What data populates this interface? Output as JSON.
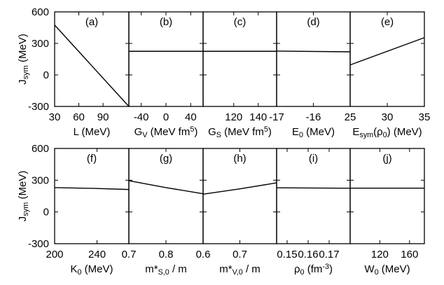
{
  "figure": {
    "y_axis": {
      "label_main": "J",
      "label_sub": "sym",
      "label_unit": " (MeV)",
      "ticks": [
        600,
        300,
        0,
        -300
      ],
      "tick_labels": [
        "600",
        "300",
        "0",
        "-300"
      ],
      "range": [
        -300,
        600
      ]
    }
  },
  "chart_data": [
    {
      "type": "line",
      "panel": "(a)",
      "xlabel": [
        {
          "t": "L (MeV)"
        }
      ],
      "xlim": [
        30,
        122
      ],
      "xticks": [
        30,
        60,
        90
      ],
      "xtick_labels": [
        "30",
        "60",
        "90"
      ],
      "ylim": [
        -300,
        600
      ],
      "series": [
        {
          "x": [
            30,
            122
          ],
          "y": [
            475,
            -300
          ]
        }
      ]
    },
    {
      "type": "line",
      "panel": "(b)",
      "xlabel": [
        {
          "t": "G"
        },
        {
          "t": "V",
          "sub": true
        },
        {
          "t": " (MeV fm"
        },
        {
          "t": "5",
          "sup": true
        },
        {
          "t": ")"
        }
      ],
      "xlim": [
        -60,
        60
      ],
      "xticks": [
        -40,
        0,
        40
      ],
      "xtick_labels": [
        "-40",
        "0",
        "40"
      ],
      "ylim": [
        -300,
        600
      ],
      "series": [
        {
          "x": [
            -60,
            60
          ],
          "y": [
            225,
            225
          ]
        }
      ]
    },
    {
      "type": "line",
      "panel": "(c)",
      "xlabel": [
        {
          "t": "G"
        },
        {
          "t": "S",
          "sub": true
        },
        {
          "t": " (MeV fm"
        },
        {
          "t": "5",
          "sup": true
        },
        {
          "t": ")"
        }
      ],
      "xlim": [
        95,
        155
      ],
      "xticks": [
        120,
        140
      ],
      "xtick_labels": [
        "120",
        "140"
      ],
      "ylim": [
        -300,
        600
      ],
      "series": [
        {
          "x": [
            95,
            155
          ],
          "y": [
            225,
            225
          ]
        }
      ]
    },
    {
      "type": "line",
      "panel": "(d)",
      "xlabel": [
        {
          "t": "E"
        },
        {
          "t": "0",
          "sub": true
        },
        {
          "t": " (MeV)"
        }
      ],
      "xlim": [
        -17,
        -15
      ],
      "xticks": [
        -17,
        -16
      ],
      "xtick_labels": [
        "-17",
        "-16"
      ],
      "ylim": [
        -300,
        600
      ],
      "series": [
        {
          "x": [
            -17,
            -15
          ],
          "y": [
            227,
            220
          ]
        }
      ]
    },
    {
      "type": "line",
      "panel": "(e)",
      "xlabel": [
        {
          "t": "E"
        },
        {
          "t": "sym",
          "sub": true
        },
        {
          "t": "(ρ"
        },
        {
          "t": "0",
          "sub": true
        },
        {
          "t": ") (MeV)"
        }
      ],
      "xlim": [
        25,
        35
      ],
      "xticks": [
        25,
        30,
        35
      ],
      "xtick_labels": [
        "25",
        "30",
        "35"
      ],
      "ylim": [
        -300,
        600
      ],
      "series": [
        {
          "x": [
            25,
            35
          ],
          "y": [
            95,
            355
          ]
        }
      ]
    },
    {
      "type": "line",
      "panel": "(f)",
      "xlabel": [
        {
          "t": "K"
        },
        {
          "t": "0",
          "sub": true
        },
        {
          "t": " (MeV)"
        }
      ],
      "xlim": [
        200,
        270
      ],
      "xticks": [
        200,
        240
      ],
      "xtick_labels": [
        "200",
        "240"
      ],
      "ylim": [
        -300,
        600
      ],
      "series": [
        {
          "x": [
            200,
            235,
            270
          ],
          "y": [
            230,
            223,
            212
          ]
        }
      ]
    },
    {
      "type": "line",
      "panel": "(g)",
      "xlabel": [
        {
          "t": "m*"
        },
        {
          "t": "S,0",
          "sub": true
        },
        {
          "t": " / m"
        }
      ],
      "xlim": [
        0.7,
        0.9
      ],
      "xticks": [
        0.7,
        0.8
      ],
      "xtick_labels": [
        "0.7",
        "0.8"
      ],
      "ylim": [
        -300,
        600
      ],
      "series": [
        {
          "x": [
            0.7,
            0.8,
            0.9
          ],
          "y": [
            295,
            230,
            172
          ]
        }
      ]
    },
    {
      "type": "line",
      "panel": "(h)",
      "xlabel": [
        {
          "t": "m*"
        },
        {
          "t": "V,0",
          "sub": true
        },
        {
          "t": " / m"
        }
      ],
      "xlim": [
        0.6,
        0.8
      ],
      "xticks": [
        0.6,
        0.7
      ],
      "xtick_labels": [
        "0.6",
        "0.7"
      ],
      "ylim": [
        -300,
        600
      ],
      "series": [
        {
          "x": [
            0.6,
            0.7,
            0.8
          ],
          "y": [
            168,
            218,
            275
          ]
        }
      ]
    },
    {
      "type": "line",
      "panel": "(i)",
      "xlabel": [
        {
          "t": "ρ"
        },
        {
          "t": "0",
          "sub": true
        },
        {
          "t": " (fm"
        },
        {
          "t": "-3",
          "sup": true
        },
        {
          "t": ")"
        }
      ],
      "xlim": [
        0.145,
        0.18
      ],
      "xticks": [
        0.15,
        0.16,
        0.17
      ],
      "xtick_labels": [
        "0.15",
        "0.16",
        "0.17"
      ],
      "ylim": [
        -300,
        600
      ],
      "series": [
        {
          "x": [
            0.145,
            0.18
          ],
          "y": [
            228,
            224
          ]
        }
      ]
    },
    {
      "type": "line",
      "panel": "(j)",
      "xlabel": [
        {
          "t": "W"
        },
        {
          "t": "0",
          "sub": true
        },
        {
          "t": " (MeV)"
        }
      ],
      "xlim": [
        80,
        180
      ],
      "xticks": [
        120,
        160
      ],
      "xtick_labels": [
        "120",
        "160"
      ],
      "ylim": [
        -300,
        600
      ],
      "series": [
        {
          "x": [
            80,
            180
          ],
          "y": [
            225,
            225
          ]
        }
      ]
    }
  ]
}
